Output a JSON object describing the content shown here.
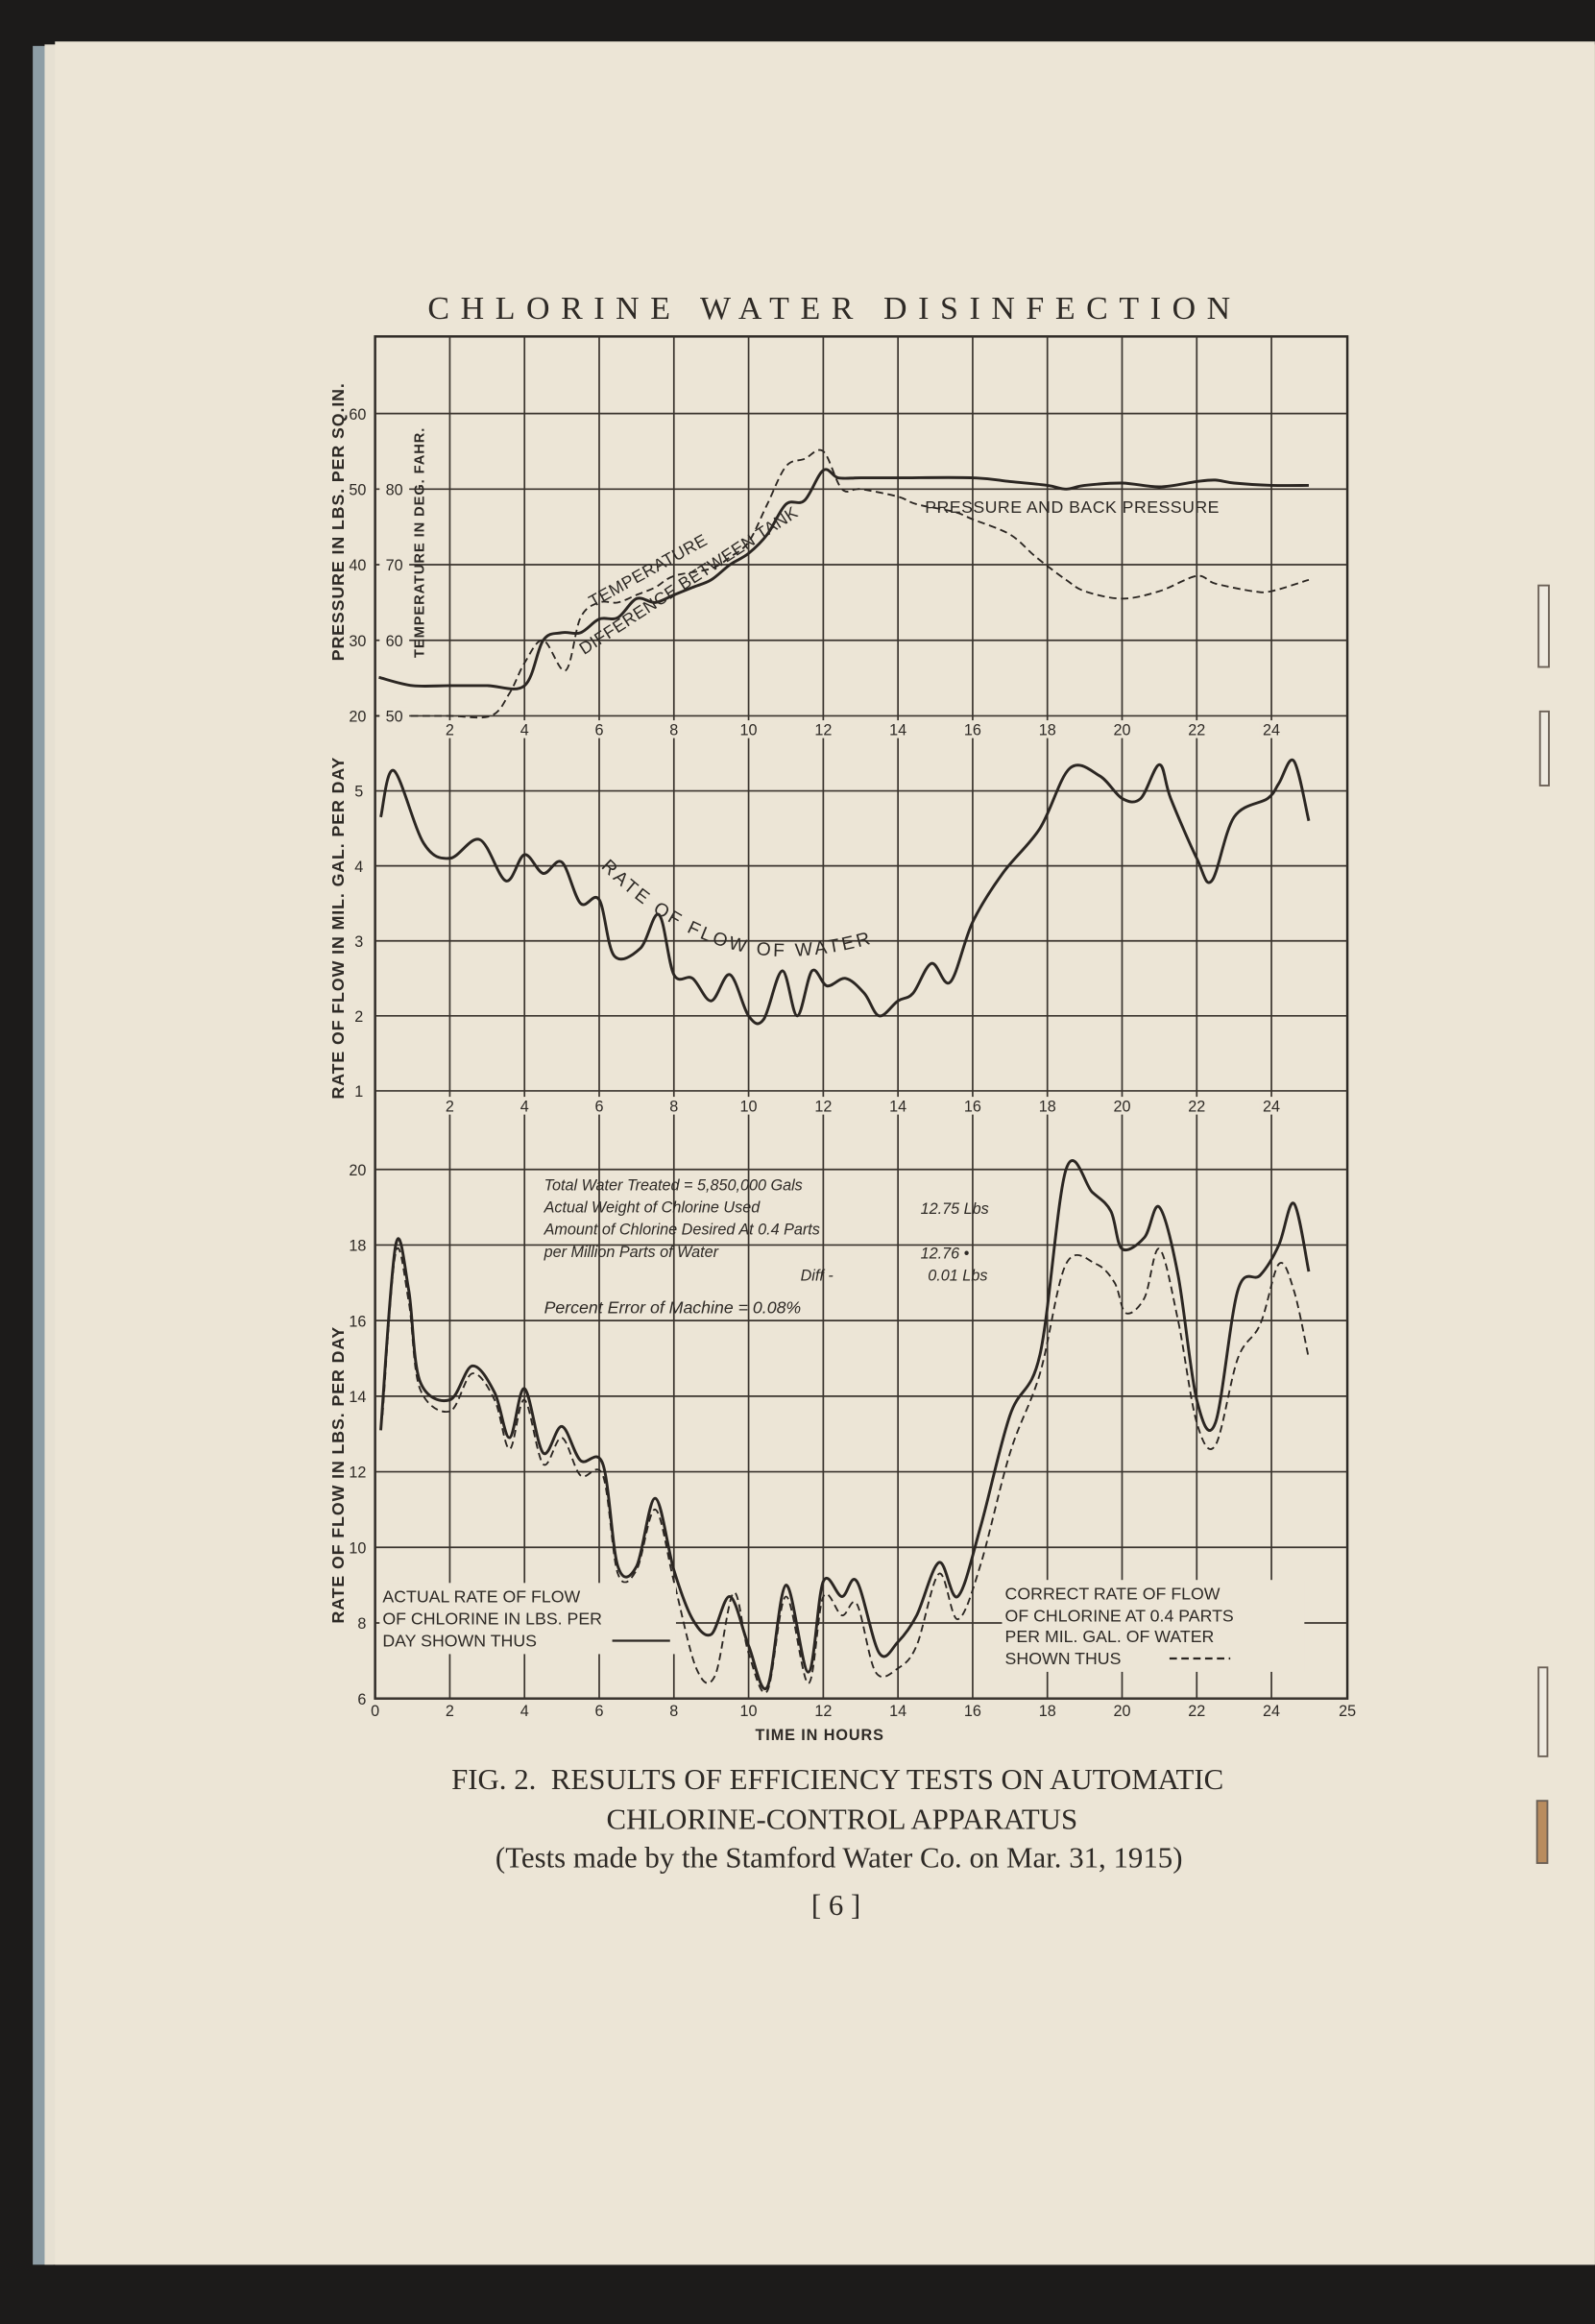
{
  "page": {
    "running_head": "CHLORINE WATER DISINFECTION",
    "caption_line1": "FIG. 2.  RESULTS OF EFFICIENCY TESTS ON AUTOMATIC",
    "caption_line2": "CHLORINE-CONTROL APPARATUS",
    "caption_line3": "(Tests made by the Stamford Water Co. on Mar. 31, 1915)",
    "page_number": "[ 6 ]"
  },
  "colors": {
    "paper": "#ece5d6",
    "ink": "#2e2a26",
    "background": "#1c1b1a",
    "page_edge_blue": "#8e9ea6"
  },
  "chart_data": [
    {
      "type": "line",
      "ylabel": "PRESSURE IN LBS. PER SQ.IN.",
      "ylabel2": "TEMPERATURE IN DEG. FAHR.",
      "x_ticks": [
        "2",
        "4",
        "6",
        "8",
        "10",
        "12",
        "14",
        "16",
        "18",
        "20",
        "22",
        "24"
      ],
      "y_ticks": [
        "20",
        "30",
        "40",
        "50",
        "60"
      ],
      "y2_ticks": [
        "50",
        "60",
        "70",
        "80"
      ],
      "ylim": [
        20,
        70
      ],
      "y2lim": [
        50,
        100
      ],
      "grid": true,
      "series": [
        {
          "label_rotated": "DIFFERENCE BETWEEN TANK",
          "label_horizontal": "PRESSURE AND BACK PRESSURE",
          "style": "solid",
          "axis": "left",
          "x": [
            0.1,
            1,
            2,
            3,
            4,
            4.5,
            5,
            5.5,
            6,
            6.5,
            7,
            7.5,
            8,
            8.5,
            9,
            9.5,
            10,
            10.5,
            11,
            11.5,
            12,
            12.4,
            13,
            14,
            16,
            17,
            18,
            18.5,
            19,
            20,
            21,
            22,
            22.5,
            23,
            24,
            25
          ],
          "y": [
            25.1,
            24,
            24,
            24,
            24,
            30,
            31,
            31,
            32.8,
            33,
            35.5,
            35,
            36,
            37,
            38,
            40,
            41.5,
            44,
            48,
            48.5,
            52.5,
            51.5,
            51.5,
            51.5,
            51.5,
            51,
            50.5,
            50,
            50.5,
            50.8,
            50.3,
            51,
            51.2,
            50.8,
            50.5,
            50.5
          ]
        },
        {
          "name": "TEMPERATURE",
          "style": "dashed",
          "axis": "right",
          "x": [
            0,
            1,
            2,
            3.1,
            3.6,
            4,
            4.5,
            5.1,
            5.5,
            6,
            6.5,
            7,
            7.5,
            8,
            9,
            9.5,
            10,
            10.5,
            11,
            11.5,
            12,
            12.5,
            13,
            14,
            14.5,
            15.5,
            16,
            17,
            17.7,
            18.5,
            19,
            20,
            21,
            22,
            22.5,
            23.5,
            24,
            25
          ],
          "y": [
            50,
            50,
            50,
            50,
            53,
            57,
            60,
            56,
            63,
            65,
            65,
            66,
            67,
            68.5,
            69.5,
            71,
            73,
            78,
            83,
            84,
            85,
            80,
            80,
            79,
            78,
            77,
            76,
            74,
            71,
            68,
            66.5,
            65.5,
            66.5,
            68.5,
            67.5,
            66.5,
            66.5,
            68
          ]
        }
      ]
    },
    {
      "type": "line",
      "ylabel": "RATE OF FLOW IN MIL. GAL. PER DAY",
      "x_ticks": [
        "2",
        "4",
        "6",
        "8",
        "10",
        "12",
        "14",
        "16",
        "18",
        "20",
        "22",
        "24"
      ],
      "y_ticks": [
        "1",
        "2",
        "3",
        "4",
        "5"
      ],
      "ylim": [
        1,
        6
      ],
      "grid": true,
      "series": [
        {
          "name": "RATE OF FLOW OF WATER",
          "style": "solid",
          "x": [
            0.15,
            0.5,
            1.3,
            2,
            2.8,
            3.5,
            4,
            4.5,
            5,
            5.5,
            6,
            6.4,
            7.1,
            7.6,
            8,
            8.5,
            9,
            9.5,
            10,
            10.4,
            10.9,
            11.3,
            11.7,
            12.1,
            12.6,
            13.1,
            13.5,
            14,
            14.4,
            14.9,
            15.4,
            16,
            16.8,
            17.8,
            18.6,
            19.4,
            20,
            20.5,
            21,
            21.3,
            22,
            22.4,
            23,
            23.9,
            24.2,
            24.6,
            25
          ],
          "y": [
            4.65,
            5.27,
            4.3,
            4.1,
            4.35,
            3.8,
            4.15,
            3.9,
            4.05,
            3.5,
            3.55,
            2.8,
            2.9,
            3.35,
            2.55,
            2.5,
            2.2,
            2.55,
            2.0,
            1.95,
            2.6,
            2.0,
            2.6,
            2.4,
            2.5,
            2.3,
            2.0,
            2.2,
            2.3,
            2.7,
            2.45,
            3.25,
            3.9,
            4.5,
            5.3,
            5.2,
            4.9,
            4.9,
            5.35,
            4.9,
            4.1,
            3.8,
            4.65,
            4.9,
            5.1,
            5.4,
            4.6
          ]
        }
      ]
    },
    {
      "type": "line",
      "ylabel": "RATE OF FLOW IN LBS. PER DAY",
      "xlabel": "TIME IN HOURS",
      "x_ticks": [
        "0",
        "2",
        "4",
        "6",
        "8",
        "10",
        "12",
        "14",
        "16",
        "18",
        "20",
        "22",
        "24",
        "25"
      ],
      "y_ticks": [
        "6",
        "8",
        "10",
        "12",
        "14",
        "16",
        "18",
        "20"
      ],
      "ylim": [
        6,
        20
      ],
      "xlim": [
        0,
        25
      ],
      "grid": true,
      "series": [
        {
          "name": "ACTUAL RATE OF FLOW",
          "style": "solid",
          "x": [
            0.15,
            0.55,
            0.9,
            1.2,
            2,
            2.6,
            3.2,
            3.6,
            4,
            4.5,
            5,
            5.5,
            6.1,
            6.5,
            7,
            7.5,
            8,
            8.5,
            9,
            9.5,
            10,
            10.5,
            11,
            11.6,
            12,
            12.5,
            12.9,
            13.5,
            14,
            14.5,
            15.1,
            15.6,
            16.2,
            17,
            17.8,
            18.5,
            19.2,
            19.7,
            20,
            20.6,
            21,
            21.5,
            22,
            22.5,
            23.1,
            23.7,
            24.2,
            24.6,
            25
          ],
          "y": [
            13.1,
            18,
            16.8,
            14.4,
            13.9,
            14.8,
            14.1,
            12.9,
            14.2,
            12.5,
            13.2,
            12.3,
            12.2,
            9.5,
            9.5,
            11.3,
            9.4,
            8.1,
            7.7,
            8.7,
            7.4,
            6.3,
            9,
            6.7,
            9.1,
            8.7,
            9.1,
            7.2,
            7.5,
            8.2,
            9.6,
            8.7,
            10.5,
            13.5,
            15.1,
            20,
            19.4,
            18.9,
            17.9,
            18.2,
            19,
            17.2,
            13.9,
            13.3,
            16.8,
            17.2,
            18,
            19.1,
            17.3
          ]
        },
        {
          "name": "CORRECT RATE OF FLOW",
          "style": "dashed",
          "x": [
            0.2,
            0.55,
            0.9,
            1.2,
            2,
            2.6,
            3.2,
            3.6,
            4,
            4.5,
            5,
            5.5,
            6.1,
            6.5,
            7,
            7.5,
            8,
            8.6,
            9.1,
            9.6,
            10,
            10.5,
            11,
            11.6,
            12,
            12.5,
            12.9,
            13.4,
            14,
            14.5,
            15.1,
            15.6,
            16.2,
            17,
            17.8,
            18.5,
            19.3,
            19.8,
            20.1,
            20.6,
            21,
            21.5,
            22,
            22.5,
            23.1,
            23.7,
            24.2,
            24.6,
            25
          ],
          "y": [
            13.5,
            17.8,
            16.5,
            14.2,
            13.6,
            14.6,
            13.9,
            12.6,
            13.9,
            12.2,
            12.9,
            11.9,
            11.9,
            9.3,
            9.4,
            11.0,
            9.1,
            6.8,
            6.6,
            8.8,
            7.2,
            6.2,
            8.7,
            6.4,
            8.7,
            8.2,
            8.5,
            6.7,
            6.8,
            7.4,
            9.3,
            8.1,
            9.5,
            12.5,
            14.6,
            17.5,
            17.5,
            17.0,
            16.2,
            16.6,
            17.9,
            16.0,
            13.3,
            12.7,
            15.0,
            15.9,
            17.5,
            16.8,
            15.0
          ]
        }
      ],
      "legend": {
        "actual_lines": [
          "ACTUAL RATE OF FLOW",
          "OF CHLORINE IN LBS. PER",
          "DAY SHOWN THUS"
        ],
        "correct_lines": [
          "CORRECT RATE OF FLOW",
          "OF CHLORINE AT 0.4 PARTS",
          "PER MIL. GAL. OF WATER",
          "SHOWN THUS"
        ]
      },
      "annotations": {
        "total_water": "Total Water Treated = 5,850,000 Gals",
        "actual_weight": "Actual Weight of Chlorine Used",
        "desired_amount_1": "Amount of Chlorine Desired At 0.4 Parts",
        "desired_amount_2": "per Million Parts of Water",
        "diff_label": "Diff  -",
        "percent_error": "Percent Error of Machine = 0.08%",
        "actual_weight_value": "12.75 Lbs",
        "desired_value": "12.76 •",
        "diff_value": "0.01 Lbs"
      }
    }
  ]
}
